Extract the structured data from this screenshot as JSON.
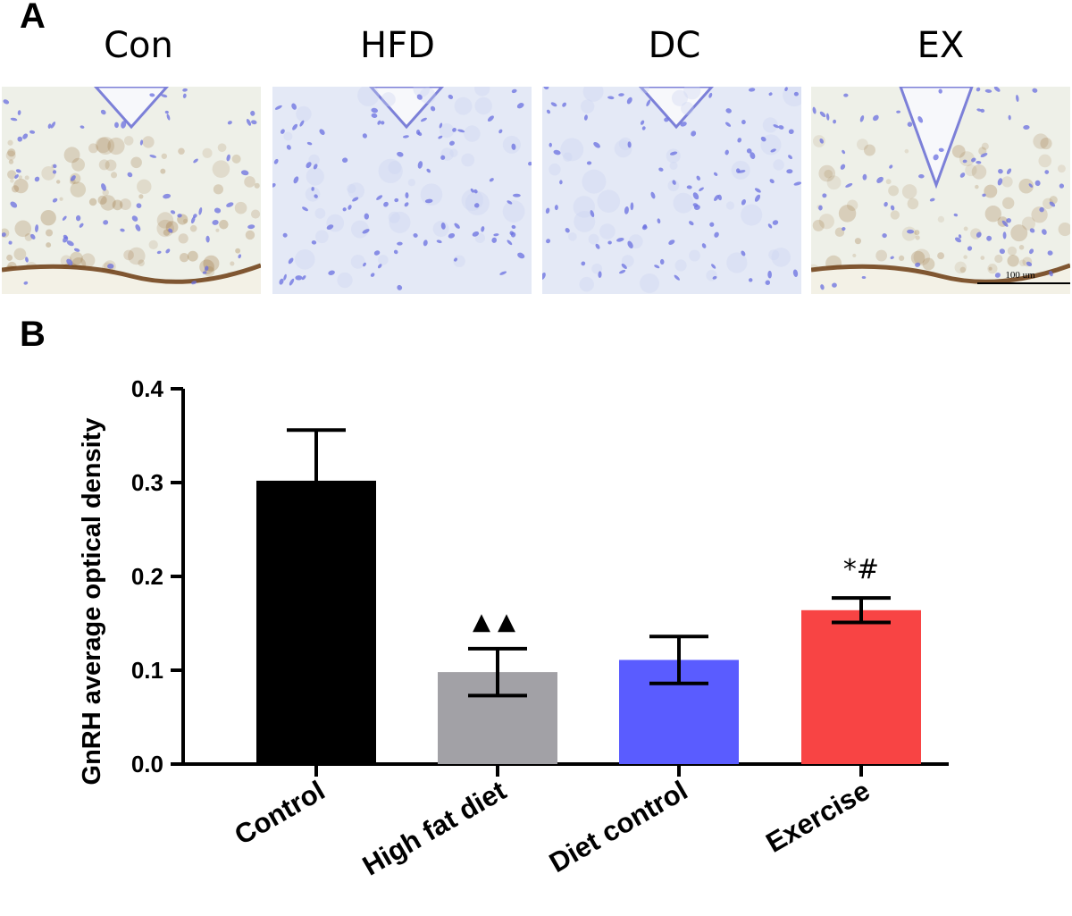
{
  "panels": {
    "a_label": "A",
    "b_label": "B"
  },
  "micrographs": [
    {
      "title": "Con",
      "stain": "strong"
    },
    {
      "title": "HFD",
      "stain": "none"
    },
    {
      "title": "DC",
      "stain": "none"
    },
    {
      "title": "EX",
      "stain": "moderate"
    }
  ],
  "scale_bar_label": "100 um",
  "colors": {
    "control": "#000000",
    "high_fat_diet": "#a2a1a6",
    "diet_control": "#5a5cff",
    "exercise": "#f84444",
    "tissue_blue": "#e6ebf7",
    "nuclei": "#6a6fe0",
    "brown_stain": "#8b5a1c"
  },
  "chart_data": {
    "type": "bar",
    "categories": [
      "Control",
      "High fat diet",
      "Diet control",
      "Exercise"
    ],
    "values": [
      0.302,
      0.098,
      0.111,
      0.164
    ],
    "errors": [
      0.054,
      0.025,
      0.025,
      0.013
    ],
    "annotations": [
      "",
      "▲▲",
      "",
      "*#"
    ],
    "ylabel": "GnRH average optical density",
    "xlabel": "",
    "ylim": [
      0,
      0.4
    ],
    "yticks": [
      "0.0",
      "0.1",
      "0.2",
      "0.3",
      "0.4"
    ],
    "grid": false,
    "legend": "none"
  }
}
